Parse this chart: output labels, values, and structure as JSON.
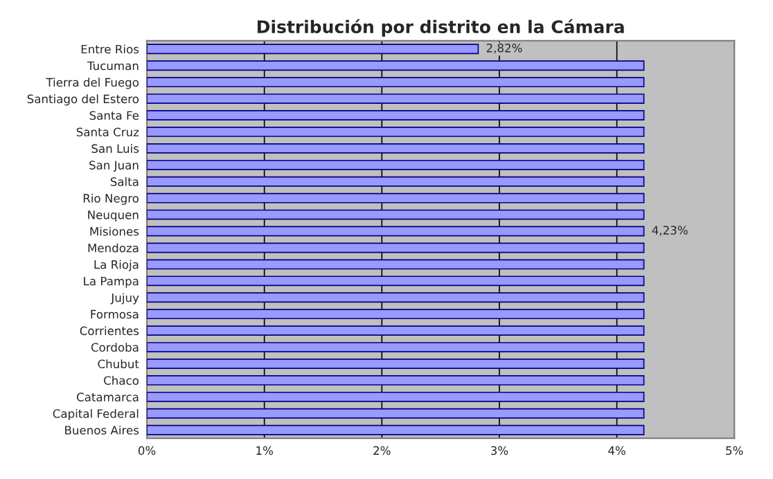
{
  "chart_data": {
    "type": "bar",
    "orientation": "horizontal",
    "title": "Distribución por distrito en la Cámara",
    "categories": [
      "Entre Rios",
      "Tucuman",
      "Tierra del Fuego",
      "Santiago del Estero",
      "Santa Fe",
      "Santa Cruz",
      "San Luis",
      "San Juan",
      "Salta",
      "Rio Negro",
      "Neuquen",
      "Misiones",
      "Mendoza",
      "La Rioja",
      "La Pampa",
      "Jujuy",
      "Formosa",
      "Corrientes",
      "Cordoba",
      "Chubut",
      "Chaco",
      "Catamarca",
      "Capital Federal",
      "Buenos Aires"
    ],
    "values": [
      2.82,
      4.23,
      4.23,
      4.23,
      4.23,
      4.23,
      4.23,
      4.23,
      4.23,
      4.23,
      4.23,
      4.23,
      4.23,
      4.23,
      4.23,
      4.23,
      4.23,
      4.23,
      4.23,
      4.23,
      4.23,
      4.23,
      4.23,
      4.23
    ],
    "value_labels": [
      "2,82%",
      null,
      null,
      null,
      null,
      null,
      null,
      null,
      null,
      null,
      null,
      "4,23%",
      null,
      null,
      null,
      null,
      null,
      null,
      null,
      null,
      null,
      null,
      null,
      null
    ],
    "color": "#9999ff",
    "xlim": [
      0,
      5
    ],
    "xticks": [
      {
        "value": 0,
        "label": "0%"
      },
      {
        "value": 1,
        "label": "1%"
      },
      {
        "value": 2,
        "label": "2%"
      },
      {
        "value": 3,
        "label": "3%"
      },
      {
        "value": 4,
        "label": "4%"
      },
      {
        "value": 5,
        "label": "5%"
      }
    ],
    "grid": "x",
    "legend": false
  }
}
